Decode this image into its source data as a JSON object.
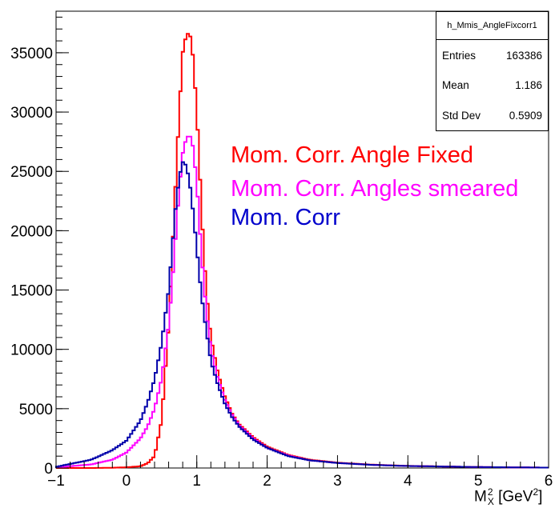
{
  "stats_box": {
    "histogram_name": "h_Mmis_AngleFixcorr1",
    "entries_label": "Entries",
    "entries_value": "163386",
    "mean_label": "Mean",
    "mean_value": "1.186",
    "stddev_label": "Std Dev",
    "stddev_value": "0.5909"
  },
  "legend": [
    {
      "text": "Mom. Corr. Angle Fixed",
      "color": "#ff0000"
    },
    {
      "text": "Mom. Corr. Angles smeared",
      "color": "#ff00ff"
    },
    {
      "text": "Mom. Corr",
      "color": "#0000cc"
    }
  ],
  "x_axis_title": {
    "base": "M",
    "sup": "2",
    "sub": "X",
    "unit_open": "[GeV",
    "unit_sup": "2",
    "unit_close": "]"
  },
  "chart_data": {
    "type": "line",
    "xlim": [
      -1,
      6
    ],
    "ylim": [
      0,
      38500
    ],
    "x_ticks": [
      "−1",
      "0",
      "1",
      "2",
      "3",
      "4",
      "5",
      "6"
    ],
    "y_ticks": [
      "0",
      "5000",
      "10000",
      "15000",
      "20000",
      "25000",
      "30000",
      "35000"
    ],
    "x_tick_values": [
      -1,
      0,
      1,
      2,
      3,
      4,
      5,
      6
    ],
    "y_tick_values": [
      0,
      5000,
      10000,
      15000,
      20000,
      25000,
      30000,
      35000
    ],
    "grid": false,
    "legend_position": "center-right",
    "x": [
      -1.0,
      -0.5,
      -0.2,
      0.0,
      0.2,
      0.3,
      0.4,
      0.5,
      0.6,
      0.65,
      0.7,
      0.75,
      0.8,
      0.85,
      0.9,
      0.95,
      1.0,
      1.05,
      1.1,
      1.15,
      1.2,
      1.3,
      1.4,
      1.5,
      1.6,
      1.8,
      2.0,
      2.3,
      2.6,
      3.0,
      3.5,
      4.0,
      5.0,
      6.0
    ],
    "series": [
      {
        "color": "#ff0000",
        "values": [
          0,
          0,
          20,
          60,
          150,
          400,
          1000,
          4000,
          12000,
          18000,
          24000,
          30000,
          35000,
          36500,
          36700,
          34500,
          30000,
          24000,
          18000,
          14000,
          11000,
          8000,
          6000,
          4600,
          3700,
          2600,
          1800,
          1100,
          700,
          450,
          280,
          180,
          80,
          30
        ]
      },
      {
        "color": "#ff00ff",
        "values": [
          50,
          300,
          700,
          1300,
          2500,
          3500,
          5000,
          7500,
          12000,
          15500,
          19500,
          23500,
          26500,
          27800,
          28100,
          27000,
          24000,
          19500,
          15500,
          12500,
          10000,
          7500,
          5700,
          4500,
          3600,
          2500,
          1700,
          1050,
          650,
          420,
          260,
          170,
          80,
          30
        ]
      },
      {
        "color": "#0000aa",
        "values": [
          100,
          700,
          1500,
          2300,
          4000,
          5500,
          7500,
          10500,
          15000,
          18500,
          22000,
          24500,
          25800,
          25500,
          24000,
          21500,
          18500,
          15500,
          13000,
          11000,
          9000,
          7000,
          5400,
          4300,
          3500,
          2400,
          1700,
          1000,
          650,
          420,
          260,
          170,
          80,
          30
        ]
      }
    ]
  }
}
